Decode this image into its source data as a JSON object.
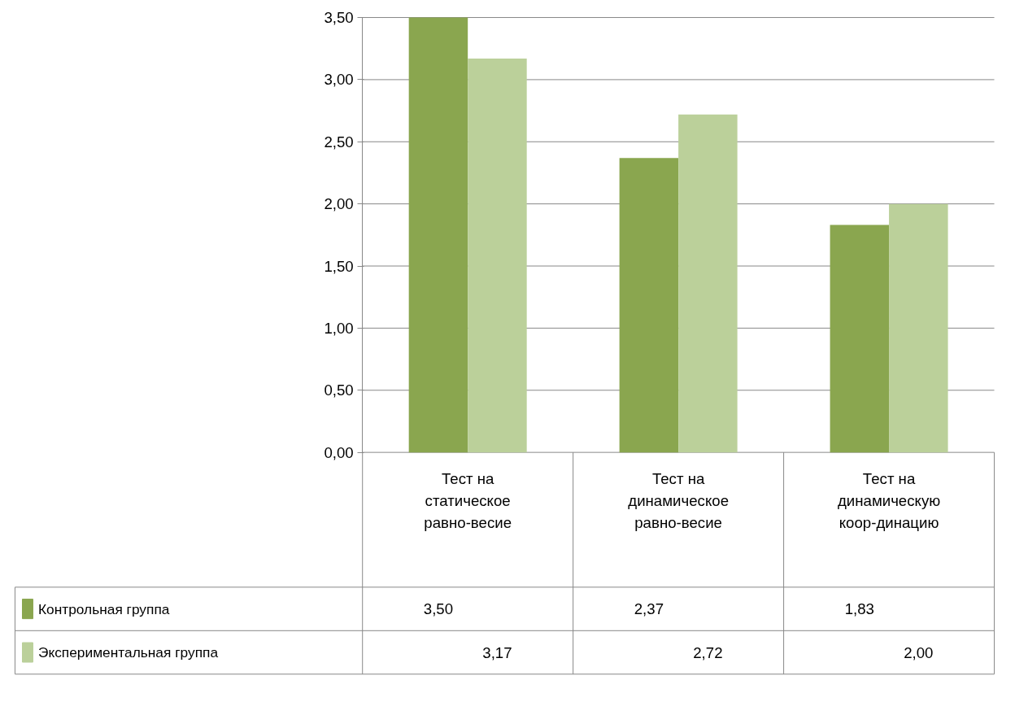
{
  "chart_data": {
    "type": "bar",
    "categories": [
      "Тест на статическое равно-весие",
      "Тест на динамическое равно-весие",
      "Тест на динамическую коор-динацию"
    ],
    "series": [
      {
        "name": "Контрольная группа",
        "color": "#8aa64f",
        "values": [
          3.5,
          2.37,
          1.83
        ],
        "value_labels": [
          "3,50",
          "2,37",
          "1,83"
        ]
      },
      {
        "name": "Экспериментальная группа",
        "color": "#bbd09a",
        "values": [
          3.17,
          2.72,
          2.0
        ],
        "value_labels": [
          "3,17",
          "2,72",
          "2,00"
        ]
      }
    ],
    "ylim": [
      0,
      3.5
    ],
    "yticks": [
      {
        "value": 0,
        "label": "0,00"
      },
      {
        "value": 0.5,
        "label": "0,50"
      },
      {
        "value": 1,
        "label": "1,00"
      },
      {
        "value": 1.5,
        "label": "1,50"
      },
      {
        "value": 2,
        "label": "2,00"
      },
      {
        "value": 2.5,
        "label": "2,50"
      },
      {
        "value": 3,
        "label": "3,00"
      },
      {
        "value": 3.5,
        "label": "3,50"
      }
    ],
    "grid": "y",
    "legend": "bottom left"
  }
}
